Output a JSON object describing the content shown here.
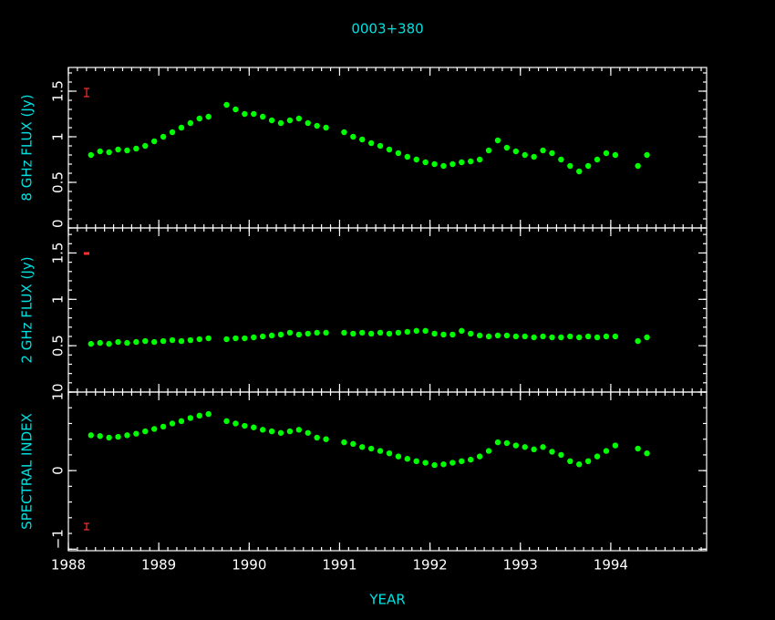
{
  "figure": {
    "title": "0003+380",
    "xlabel": "YEAR",
    "xlim": [
      1988,
      1995.06
    ],
    "xticks": [
      1988,
      1989,
      1990,
      1991,
      1992,
      1993,
      1994
    ]
  },
  "chart_data": [
    {
      "type": "scatter",
      "ylabel": "8 GHz FLUX (Jy)",
      "color": "#00ff00",
      "ylim": [
        0,
        1.76
      ],
      "yticks": [
        0,
        0.5,
        1,
        1.5
      ],
      "x": [
        1988.25,
        1988.35,
        1988.45,
        1988.55,
        1988.65,
        1988.75,
        1988.85,
        1988.95,
        1989.05,
        1989.15,
        1989.25,
        1989.35,
        1989.45,
        1989.55,
        1989.75,
        1989.85,
        1989.95,
        1990.05,
        1990.15,
        1990.25,
        1990.35,
        1990.45,
        1990.55,
        1990.65,
        1990.75,
        1990.85,
        1991.05,
        1991.15,
        1991.25,
        1991.35,
        1991.45,
        1991.55,
        1991.65,
        1991.75,
        1991.85,
        1991.95,
        1992.05,
        1992.15,
        1992.25,
        1992.35,
        1992.45,
        1992.55,
        1992.65,
        1992.75,
        1992.85,
        1992.95,
        1993.05,
        1993.15,
        1993.25,
        1993.35,
        1993.45,
        1993.55,
        1993.65,
        1993.75,
        1993.85,
        1993.95,
        1994.05,
        1994.3,
        1994.4
      ],
      "values": [
        0.8,
        0.84,
        0.83,
        0.86,
        0.85,
        0.87,
        0.9,
        0.95,
        1.0,
        1.05,
        1.1,
        1.15,
        1.2,
        1.22,
        1.35,
        1.3,
        1.25,
        1.25,
        1.22,
        1.18,
        1.15,
        1.18,
        1.2,
        1.15,
        1.12,
        1.1,
        1.05,
        1.0,
        0.97,
        0.93,
        0.9,
        0.86,
        0.82,
        0.78,
        0.75,
        0.72,
        0.7,
        0.68,
        0.7,
        0.72,
        0.73,
        0.75,
        0.85,
        0.96,
        0.88,
        0.84,
        0.8,
        0.78,
        0.85,
        0.82,
        0.75,
        0.68,
        0.62,
        0.68,
        0.75,
        0.82,
        0.8,
        0.68,
        0.8
      ]
    },
    {
      "type": "scatter",
      "ylabel": "2 GHz FLUX (Jy)",
      "color": "#00ff00",
      "ylim": [
        0,
        1.77
      ],
      "yticks": [
        0,
        0.5,
        1,
        1.5
      ],
      "x": [
        1988.25,
        1988.35,
        1988.45,
        1988.55,
        1988.65,
        1988.75,
        1988.85,
        1988.95,
        1989.05,
        1989.15,
        1989.25,
        1989.35,
        1989.45,
        1989.55,
        1989.75,
        1989.85,
        1989.95,
        1990.05,
        1990.15,
        1990.25,
        1990.35,
        1990.45,
        1990.55,
        1990.65,
        1990.75,
        1990.85,
        1991.05,
        1991.15,
        1991.25,
        1991.35,
        1991.45,
        1991.55,
        1991.65,
        1991.75,
        1991.85,
        1991.95,
        1992.05,
        1992.15,
        1992.25,
        1992.35,
        1992.45,
        1992.55,
        1992.65,
        1992.75,
        1992.85,
        1992.95,
        1993.05,
        1993.15,
        1993.25,
        1993.35,
        1993.45,
        1993.55,
        1993.65,
        1993.75,
        1993.85,
        1993.95,
        1994.05,
        1994.3,
        1994.4
      ],
      "values": [
        0.52,
        0.53,
        0.52,
        0.54,
        0.53,
        0.54,
        0.55,
        0.54,
        0.55,
        0.56,
        0.55,
        0.56,
        0.57,
        0.58,
        0.57,
        0.58,
        0.58,
        0.59,
        0.6,
        0.61,
        0.62,
        0.64,
        0.62,
        0.63,
        0.64,
        0.64,
        0.64,
        0.63,
        0.64,
        0.63,
        0.64,
        0.63,
        0.64,
        0.65,
        0.66,
        0.66,
        0.63,
        0.62,
        0.62,
        0.66,
        0.63,
        0.61,
        0.6,
        0.61,
        0.61,
        0.6,
        0.6,
        0.59,
        0.6,
        0.59,
        0.59,
        0.6,
        0.59,
        0.6,
        0.59,
        0.6,
        0.6,
        0.55,
        0.59
      ]
    },
    {
      "type": "scatter",
      "ylabel": "SPECTRAL INDEX",
      "color": "#00ff00",
      "ylim": [
        -1.02,
        1.0
      ],
      "yticks": [
        {
          "value": -1,
          "label": "−1"
        },
        0,
        1
      ],
      "x": [
        1988.25,
        1988.35,
        1988.45,
        1988.55,
        1988.65,
        1988.75,
        1988.85,
        1988.95,
        1989.05,
        1989.15,
        1989.25,
        1989.35,
        1989.45,
        1989.55,
        1989.75,
        1989.85,
        1989.95,
        1990.05,
        1990.15,
        1990.25,
        1990.35,
        1990.45,
        1990.55,
        1990.65,
        1990.75,
        1990.85,
        1991.05,
        1991.15,
        1991.25,
        1991.35,
        1991.45,
        1991.55,
        1991.65,
        1991.75,
        1991.85,
        1991.95,
        1992.05,
        1992.15,
        1992.25,
        1992.35,
        1992.45,
        1992.55,
        1992.65,
        1992.75,
        1992.85,
        1992.95,
        1993.05,
        1993.15,
        1993.25,
        1993.35,
        1993.45,
        1993.55,
        1993.65,
        1993.75,
        1993.85,
        1993.95,
        1994.05,
        1994.3,
        1994.4
      ],
      "values": [
        0.45,
        0.44,
        0.42,
        0.43,
        0.45,
        0.47,
        0.5,
        0.53,
        0.56,
        0.6,
        0.63,
        0.67,
        0.7,
        0.72,
        0.63,
        0.6,
        0.57,
        0.55,
        0.52,
        0.5,
        0.48,
        0.5,
        0.52,
        0.48,
        0.42,
        0.4,
        0.36,
        0.34,
        0.3,
        0.28,
        0.25,
        0.22,
        0.18,
        0.15,
        0.12,
        0.1,
        0.07,
        0.08,
        0.1,
        0.12,
        0.14,
        0.18,
        0.25,
        0.36,
        0.35,
        0.32,
        0.3,
        0.27,
        0.3,
        0.24,
        0.2,
        0.12,
        0.08,
        0.12,
        0.18,
        0.25,
        0.32,
        0.28,
        0.22
      ]
    }
  ]
}
